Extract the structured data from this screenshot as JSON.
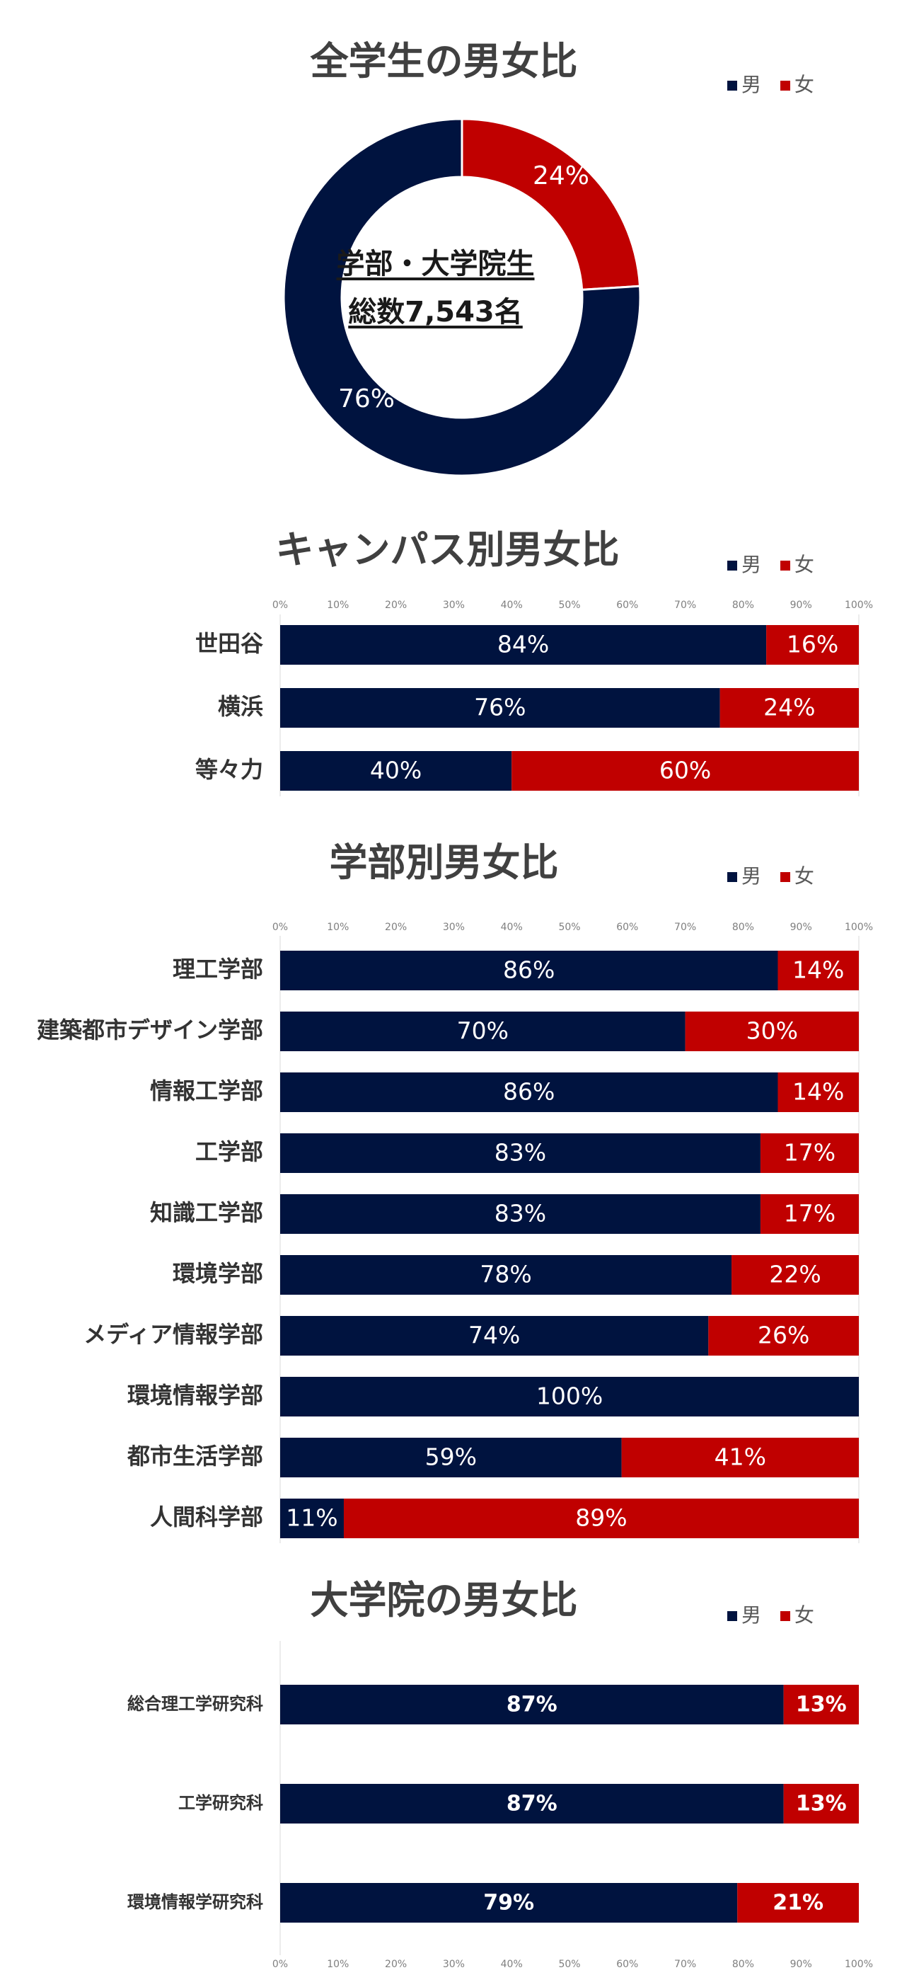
{
  "colors": {
    "male": "#00133f",
    "female": "#c00000",
    "title": "#404040",
    "axis": "#7f7f7f"
  },
  "legend": {
    "male": "男",
    "female": "女"
  },
  "donut": {
    "title": "全学生の男女比",
    "center_line1": "学部・大学院生",
    "center_line2": "総数7,543名"
  },
  "campus": {
    "title": "キャンパス別男女比"
  },
  "faculty": {
    "title": "学部別男女比"
  },
  "grad": {
    "title": "大学院の男女比"
  },
  "chart_data": [
    {
      "type": "pie",
      "title": "全学生の男女比",
      "categories": [
        "男",
        "女"
      ],
      "values": [
        76,
        24
      ],
      "labels": [
        "76%",
        "24%"
      ]
    },
    {
      "type": "bar",
      "title": "キャンパス別男女比",
      "orientation": "horizontal-stacked-100",
      "categories": [
        "世田谷",
        "横浜",
        "等々力"
      ],
      "series": [
        {
          "name": "男",
          "values": [
            84,
            76,
            40
          ]
        },
        {
          "name": "女",
          "values": [
            16,
            24,
            60
          ]
        }
      ],
      "xlim": [
        0,
        100
      ],
      "ticks": [
        "0%",
        "10%",
        "20%",
        "30%",
        "40%",
        "50%",
        "60%",
        "70%",
        "80%",
        "90%",
        "100%"
      ],
      "ticks_position": "top",
      "legend": "top-right"
    },
    {
      "type": "bar",
      "title": "学部別男女比",
      "orientation": "horizontal-stacked-100",
      "categories": [
        "理工学部",
        "建築都市デザイン学部",
        "情報工学部",
        "工学部",
        "知識工学部",
        "環境学部",
        "メディア情報学部",
        "環境情報学部",
        "都市生活学部",
        "人間科学部"
      ],
      "series": [
        {
          "name": "男",
          "values": [
            86,
            70,
            86,
            83,
            83,
            78,
            74,
            100,
            59,
            11
          ]
        },
        {
          "name": "女",
          "values": [
            14,
            30,
            14,
            17,
            17,
            22,
            26,
            0,
            41,
            89
          ]
        }
      ],
      "xlim": [
        0,
        100
      ],
      "ticks": [
        "0%",
        "10%",
        "20%",
        "30%",
        "40%",
        "50%",
        "60%",
        "70%",
        "80%",
        "90%",
        "100%"
      ],
      "ticks_position": "top",
      "legend": "top-right"
    },
    {
      "type": "bar",
      "title": "大学院の男女比",
      "orientation": "horizontal-stacked-100",
      "categories": [
        "総合理工学研究科",
        "工学研究科",
        "環境情報学研究科"
      ],
      "series": [
        {
          "name": "男",
          "values": [
            87,
            87,
            79
          ]
        },
        {
          "name": "女",
          "values": [
            13,
            13,
            21
          ]
        }
      ],
      "xlim": [
        0,
        100
      ],
      "ticks": [
        "0%",
        "10%",
        "20%",
        "30%",
        "40%",
        "50%",
        "60%",
        "70%",
        "80%",
        "90%",
        "100%"
      ],
      "ticks_position": "bottom",
      "legend": "top-right"
    }
  ]
}
